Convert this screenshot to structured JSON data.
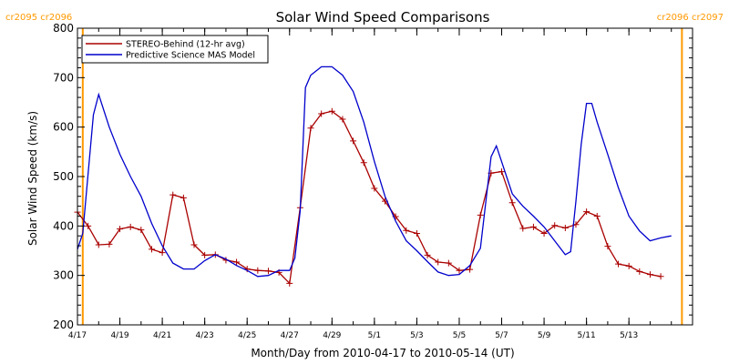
{
  "chart_data": {
    "type": "line",
    "title": "Solar Wind Speed Comparisons",
    "xlabel": "Month/Day from 2010-04-17 to 2010-05-14 (UT)",
    "ylabel": "Solar Wind Speed (km/s)",
    "xlim": [
      "2010-04-17",
      "2010-05-16"
    ],
    "ylim": [
      200,
      800
    ],
    "x_ticks": [
      {
        "date": "2010-04-17",
        "label": "4/17"
      },
      {
        "date": "2010-04-19",
        "label": "4/19"
      },
      {
        "date": "2010-04-21",
        "label": "4/21"
      },
      {
        "date": "2010-04-23",
        "label": "4/23"
      },
      {
        "date": "2010-04-25",
        "label": "4/25"
      },
      {
        "date": "2010-04-27",
        "label": "4/27"
      },
      {
        "date": "2010-04-29",
        "label": "4/29"
      },
      {
        "date": "2010-05-01",
        "label": "5/1"
      },
      {
        "date": "2010-05-03",
        "label": "5/3"
      },
      {
        "date": "2010-05-05",
        "label": "5/5"
      },
      {
        "date": "2010-05-07",
        "label": "5/7"
      },
      {
        "date": "2010-05-09",
        "label": "5/9"
      },
      {
        "date": "2010-05-11",
        "label": "5/11"
      },
      {
        "date": "2010-05-13",
        "label": "5/13"
      }
    ],
    "y_ticks": [
      200,
      300,
      400,
      500,
      600,
      700,
      800
    ],
    "legend": {
      "placement": "top-left",
      "entries": [
        {
          "label": "STEREO-Behind (12-hr avg)",
          "color": "#aa0000"
        },
        {
          "label": "Predictive Science MAS Model",
          "color": "#0000cc"
        }
      ]
    },
    "markers": [
      {
        "date": "2010-04-17 06:00",
        "labels": [
          "cr2095",
          "cr2096"
        ],
        "side": "left",
        "color": "#ff9900"
      },
      {
        "date": "2010-05-15 12:00",
        "labels": [
          "cr2096",
          "cr2097"
        ],
        "side": "right",
        "color": "#ff9900"
      }
    ],
    "series": [
      {
        "name": "STEREO-Behind (12-hr avg)",
        "color": "#aa0000",
        "marker": "plus",
        "points": [
          [
            "2010-04-17 00:00",
            428
          ],
          [
            "2010-04-17 12:00",
            400
          ],
          [
            "2010-04-18 00:00",
            362
          ],
          [
            "2010-04-18 12:00",
            363
          ],
          [
            "2010-04-19 00:00",
            394
          ],
          [
            "2010-04-19 12:00",
            398
          ],
          [
            "2010-04-20 00:00",
            392
          ],
          [
            "2010-04-20 12:00",
            353
          ],
          [
            "2010-04-21 00:00",
            346
          ],
          [
            "2010-04-21 12:00",
            463
          ],
          [
            "2010-04-22 00:00",
            457
          ],
          [
            "2010-04-22 12:00",
            362
          ],
          [
            "2010-04-23 00:00",
            341
          ],
          [
            "2010-04-23 12:00",
            342
          ],
          [
            "2010-04-24 00:00",
            331
          ],
          [
            "2010-04-24 12:00",
            327
          ],
          [
            "2010-04-25 00:00",
            313
          ],
          [
            "2010-04-25 12:00",
            310
          ],
          [
            "2010-04-26 00:00",
            309
          ],
          [
            "2010-04-26 12:00",
            306
          ],
          [
            "2010-04-27 00:00",
            284
          ],
          [
            "2010-04-27 12:00",
            437
          ],
          [
            "2010-04-28 00:00",
            598
          ],
          [
            "2010-04-28 12:00",
            627
          ],
          [
            "2010-04-29 00:00",
            632
          ],
          [
            "2010-04-29 12:00",
            616
          ],
          [
            "2010-04-30 00:00",
            572
          ],
          [
            "2010-04-30 12:00",
            528
          ],
          [
            "2010-05-01 00:00",
            476
          ],
          [
            "2010-05-01 12:00",
            450
          ],
          [
            "2010-05-02 00:00",
            419
          ],
          [
            "2010-05-02 12:00",
            391
          ],
          [
            "2010-05-03 00:00",
            385
          ],
          [
            "2010-05-03 12:00",
            341
          ],
          [
            "2010-05-04 00:00",
            327
          ],
          [
            "2010-05-04 12:00",
            325
          ],
          [
            "2010-05-05 00:00",
            310
          ],
          [
            "2010-05-05 12:00",
            312
          ],
          [
            "2010-05-06 00:00",
            422
          ],
          [
            "2010-05-06 12:00",
            507
          ],
          [
            "2010-05-07 00:00",
            510
          ],
          [
            "2010-05-07 12:00",
            447
          ],
          [
            "2010-05-08 00:00",
            395
          ],
          [
            "2010-05-08 12:00",
            398
          ],
          [
            "2010-05-09 00:00",
            385
          ],
          [
            "2010-05-09 12:00",
            401
          ],
          [
            "2010-05-10 00:00",
            396
          ],
          [
            "2010-05-10 12:00",
            403
          ],
          [
            "2010-05-11 00:00",
            429
          ],
          [
            "2010-05-11 12:00",
            420
          ],
          [
            "2010-05-12 00:00",
            359
          ],
          [
            "2010-05-12 12:00",
            323
          ],
          [
            "2010-05-13 00:00",
            319
          ],
          [
            "2010-05-13 12:00",
            308
          ],
          [
            "2010-05-14 00:00",
            302
          ],
          [
            "2010-05-14 12:00",
            298
          ]
        ]
      },
      {
        "name": "Predictive Science MAS Model",
        "color": "#0000cc",
        "marker": "none",
        "points": [
          [
            "2010-04-17 00:00",
            353
          ],
          [
            "2010-04-17 06:00",
            385
          ],
          [
            "2010-04-17 18:00",
            625
          ],
          [
            "2010-04-18 00:00",
            666
          ],
          [
            "2010-04-18 12:00",
            600
          ],
          [
            "2010-04-19 00:00",
            545
          ],
          [
            "2010-04-19 12:00",
            500
          ],
          [
            "2010-04-20 00:00",
            460
          ],
          [
            "2010-04-20 12:00",
            405
          ],
          [
            "2010-04-21 00:00",
            360
          ],
          [
            "2010-04-21 12:00",
            325
          ],
          [
            "2010-04-22 00:00",
            313
          ],
          [
            "2010-04-22 12:00",
            313
          ],
          [
            "2010-04-23 00:00",
            330
          ],
          [
            "2010-04-23 12:00",
            342
          ],
          [
            "2010-04-24 00:00",
            333
          ],
          [
            "2010-04-24 12:00",
            320
          ],
          [
            "2010-04-25 00:00",
            310
          ],
          [
            "2010-04-25 12:00",
            298
          ],
          [
            "2010-04-26 00:00",
            300
          ],
          [
            "2010-04-26 12:00",
            310
          ],
          [
            "2010-04-27 00:00",
            310
          ],
          [
            "2010-04-27 06:00",
            335
          ],
          [
            "2010-04-27 12:00",
            430
          ],
          [
            "2010-04-27 18:00",
            680
          ],
          [
            "2010-04-28 00:00",
            705
          ],
          [
            "2010-04-28 12:00",
            722
          ],
          [
            "2010-04-29 00:00",
            722
          ],
          [
            "2010-04-29 12:00",
            705
          ],
          [
            "2010-04-30 00:00",
            672
          ],
          [
            "2010-04-30 12:00",
            610
          ],
          [
            "2010-05-01 00:00",
            530
          ],
          [
            "2010-05-01 12:00",
            460
          ],
          [
            "2010-05-02 00:00",
            410
          ],
          [
            "2010-05-02 12:00",
            370
          ],
          [
            "2010-05-03 00:00",
            350
          ],
          [
            "2010-05-03 12:00",
            328
          ],
          [
            "2010-05-04 00:00",
            307
          ],
          [
            "2010-05-04 12:00",
            300
          ],
          [
            "2010-05-05 00:00",
            302
          ],
          [
            "2010-05-05 12:00",
            320
          ],
          [
            "2010-05-06 00:00",
            355
          ],
          [
            "2010-05-06 12:00",
            540
          ],
          [
            "2010-05-06 18:00",
            562
          ],
          [
            "2010-05-07 00:00",
            530
          ],
          [
            "2010-05-07 12:00",
            465
          ],
          [
            "2010-05-08 00:00",
            440
          ],
          [
            "2010-05-08 12:00",
            420
          ],
          [
            "2010-05-09 00:00",
            398
          ],
          [
            "2010-05-09 12:00",
            370
          ],
          [
            "2010-05-10 00:00",
            342
          ],
          [
            "2010-05-10 06:00",
            348
          ],
          [
            "2010-05-10 12:00",
            450
          ],
          [
            "2010-05-10 18:00",
            565
          ],
          [
            "2010-05-11 00:00",
            648
          ],
          [
            "2010-05-11 06:00",
            648
          ],
          [
            "2010-05-11 12:00",
            610
          ],
          [
            "2010-05-12 00:00",
            545
          ],
          [
            "2010-05-12 12:00",
            478
          ],
          [
            "2010-05-13 00:00",
            420
          ],
          [
            "2010-05-13 12:00",
            390
          ],
          [
            "2010-05-14 00:00",
            370
          ],
          [
            "2010-05-14 12:00",
            376
          ],
          [
            "2010-05-15 00:00",
            380
          ]
        ]
      }
    ]
  }
}
